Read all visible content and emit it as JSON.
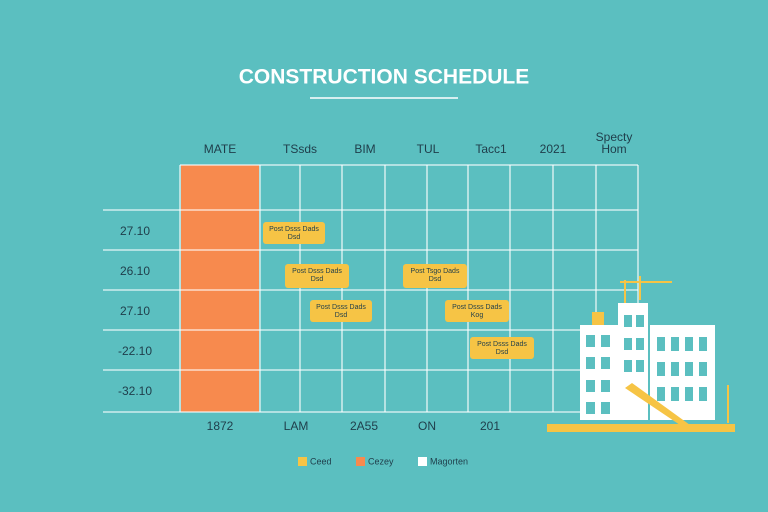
{
  "header": {
    "title": "CONSTRUCTION SCHEDULE"
  },
  "column_headers": [
    "MATE",
    "TSsds",
    "BIM",
    "TUL",
    "Tacc1",
    "2021"
  ],
  "extra_header": [
    "Specty",
    "Hom"
  ],
  "row_labels": [
    "27.10",
    "26.10",
    "27.10",
    "-22.10",
    "-32.10"
  ],
  "footer_labels": [
    "1872",
    "LAM",
    "2A55",
    "ON",
    "201"
  ],
  "tasks": [
    {
      "lines": [
        "Post Dsss Dads",
        "Dsd"
      ]
    },
    {
      "lines": [
        "Post Dsss Dads",
        "Dsd"
      ]
    },
    {
      "lines": [
        "Post Tsgo Dads",
        "Dsd"
      ]
    },
    {
      "lines": [
        "Post Dsss Dads",
        "Dsd"
      ]
    },
    {
      "lines": [
        "Post Dsss Dads",
        "Kog"
      ]
    },
    {
      "lines": [
        "Post Dsss Dads",
        "Dsd"
      ]
    }
  ],
  "legend": [
    "Ceed",
    "Cezey",
    "Magorten"
  ]
}
